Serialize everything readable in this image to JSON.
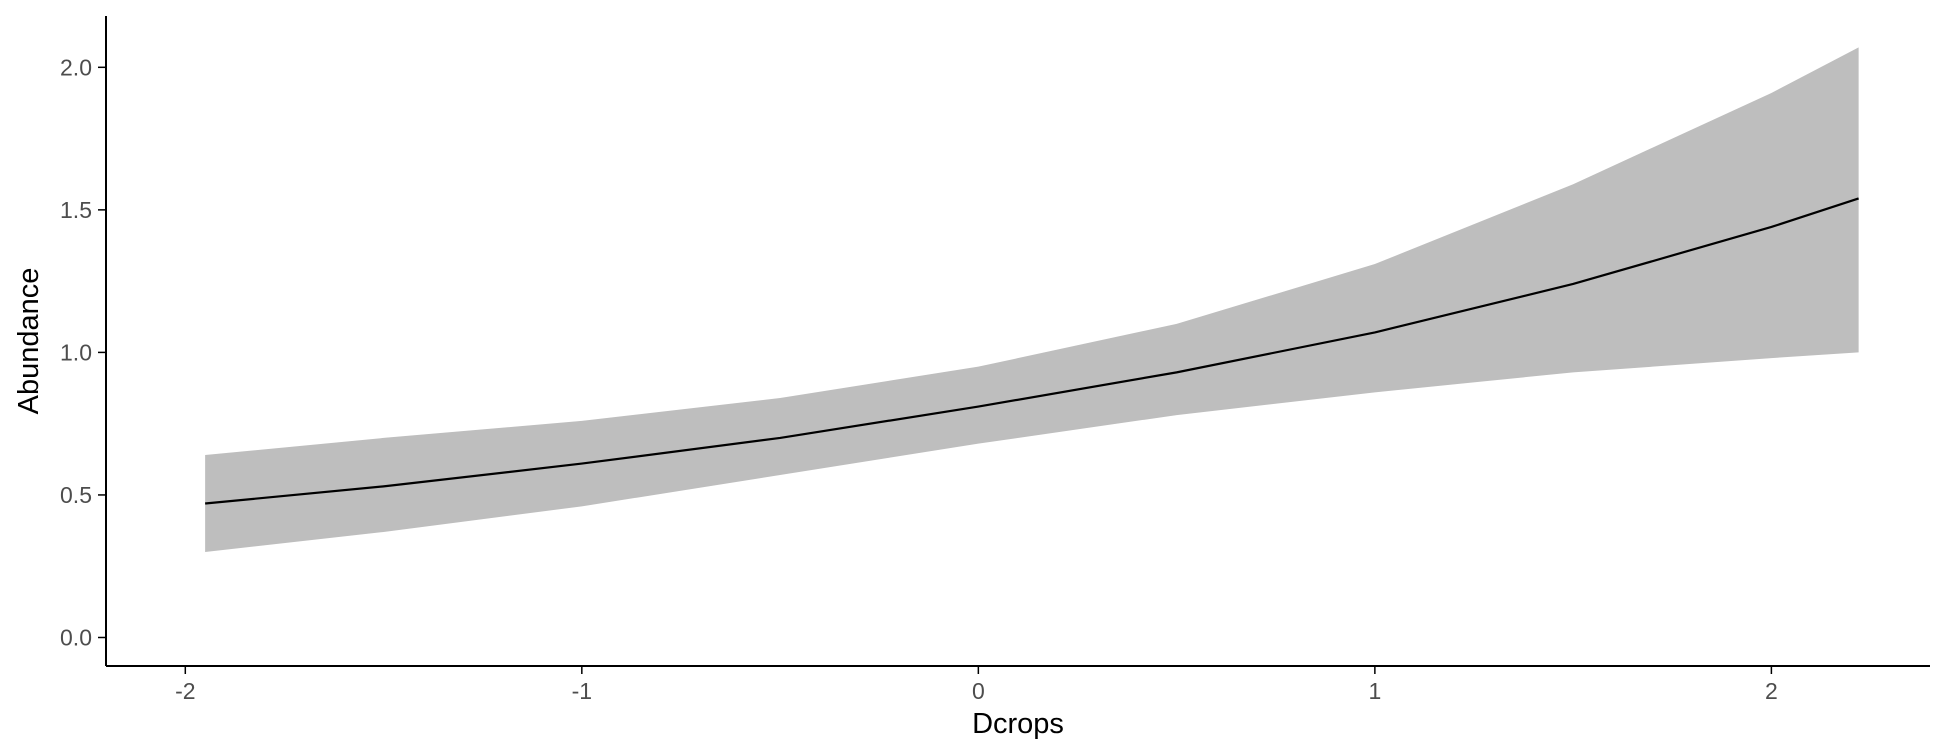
{
  "chart_data": {
    "type": "line",
    "title": "",
    "xlabel": "Dcrops",
    "ylabel": "Abundance",
    "xlim": [
      -2.2,
      2.4
    ],
    "ylim": [
      -0.1,
      2.18
    ],
    "x_ticks": [
      -2,
      -1,
      0,
      1,
      2
    ],
    "x_tick_labels": [
      "-2",
      "-1",
      "0",
      "1",
      "2"
    ],
    "y_ticks": [
      0.0,
      0.5,
      1.0,
      1.5,
      2.0
    ],
    "y_tick_labels": [
      "0.0",
      "0.5",
      "1.0",
      "1.5",
      "2.0"
    ],
    "grid": false,
    "legend": "none",
    "colors": {
      "line": "#000000",
      "ribbon": "#bebebe",
      "axis": "#000000",
      "tick_label": "#4d4d4d"
    },
    "series": [
      {
        "x": [
          -1.95,
          -1.5,
          -1.0,
          -0.5,
          0.0,
          0.5,
          1.0,
          1.5,
          2.0,
          2.22
        ],
        "y": [
          0.47,
          0.53,
          0.61,
          0.7,
          0.81,
          0.93,
          1.07,
          1.24,
          1.44,
          1.54
        ],
        "lower": [
          0.3,
          0.37,
          0.46,
          0.57,
          0.68,
          0.78,
          0.86,
          0.93,
          0.98,
          1.0
        ],
        "upper": [
          0.64,
          0.7,
          0.76,
          0.84,
          0.95,
          1.1,
          1.31,
          1.59,
          1.91,
          2.07
        ]
      }
    ]
  }
}
